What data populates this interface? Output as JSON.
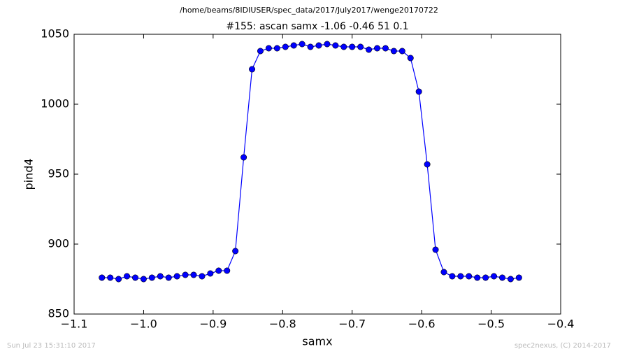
{
  "chart_data": {
    "type": "line",
    "suptitle": "/home/beams/8IDIUSER/spec_data/2017/July2017/wenge20170722",
    "title": "#155: ascan  samx -1.06 -0.46  51 0.1",
    "xlabel": "samx",
    "ylabel": "pind4",
    "footer_left": "Sun Jul 23 15:31:10 2017",
    "footer_right": "spec2nexus, (C) 2014-2017",
    "x": [
      -1.06,
      -1.048,
      -1.036,
      -1.024,
      -1.012,
      -1.0,
      -0.988,
      -0.976,
      -0.964,
      -0.952,
      -0.94,
      -0.928,
      -0.916,
      -0.904,
      -0.892,
      -0.88,
      -0.868,
      -0.856,
      -0.844,
      -0.832,
      -0.82,
      -0.808,
      -0.796,
      -0.784,
      -0.772,
      -0.76,
      -0.748,
      -0.736,
      -0.724,
      -0.712,
      -0.7,
      -0.688,
      -0.676,
      -0.664,
      -0.652,
      -0.64,
      -0.628,
      -0.616,
      -0.604,
      -0.592,
      -0.58,
      -0.568,
      -0.556,
      -0.544,
      -0.532,
      -0.52,
      -0.508,
      -0.496,
      -0.484,
      -0.472,
      -0.46
    ],
    "series": [
      {
        "name": "pind4",
        "color": "#0000ff",
        "values": [
          876,
          876,
          875,
          877,
          876,
          875,
          876,
          877,
          876,
          877,
          878,
          878,
          877,
          879,
          881,
          881,
          895,
          962,
          1025,
          1038,
          1040,
          1040,
          1041,
          1042,
          1043,
          1041,
          1042,
          1043,
          1042,
          1041,
          1041,
          1041,
          1039,
          1040,
          1040,
          1038,
          1038,
          1033,
          1009,
          957,
          896,
          880,
          877,
          877,
          877,
          876,
          876,
          877,
          876,
          875,
          876
        ]
      }
    ],
    "xlim": [
      -1.1,
      -0.4
    ],
    "xticks": [
      {
        "value": -1.1,
        "label": "−1.1"
      },
      {
        "value": -1.0,
        "label": "−1.0"
      },
      {
        "value": -0.9,
        "label": "−0.9"
      },
      {
        "value": -0.8,
        "label": "−0.8"
      },
      {
        "value": -0.7,
        "label": "−0.7"
      },
      {
        "value": -0.6,
        "label": "−0.6"
      },
      {
        "value": -0.5,
        "label": "−0.5"
      },
      {
        "value": -0.4,
        "label": "−0.4"
      }
    ],
    "ylim": [
      850,
      1050
    ],
    "yticks": [
      850,
      900,
      950,
      1000,
      1050
    ],
    "grid": false
  }
}
